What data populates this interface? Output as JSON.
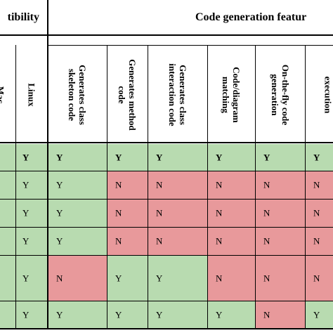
{
  "header": {
    "group_compatibility": "tibility",
    "group_code_generation": "Code generation featur"
  },
  "columns": [
    {
      "label": "Mac"
    },
    {
      "label": "Linux"
    },
    {
      "label": "Generates class skeleton code"
    },
    {
      "label": "Generates method code"
    },
    {
      "label": "Generates class interaction code"
    },
    {
      "label": "Code/diagram matching"
    },
    {
      "label": "On-the-fly code generation"
    },
    {
      "label": "execution"
    }
  ],
  "rows": [
    [
      "",
      "Y",
      "Y",
      "Y",
      "Y",
      "Y",
      "Y",
      "Y"
    ],
    [
      "",
      "Y",
      "Y",
      "N",
      "N",
      "N",
      "N",
      "N"
    ],
    [
      "",
      "Y",
      "Y",
      "N",
      "N",
      "N",
      "N",
      "N"
    ],
    [
      "",
      "Y",
      "Y",
      "N",
      "N",
      "N",
      "N",
      "N"
    ],
    [
      "",
      "Y",
      "N",
      "Y",
      "Y",
      "N",
      "N",
      "N"
    ],
    [
      "",
      "Y",
      "Y",
      "Y",
      "Y",
      "Y",
      "N",
      "Y"
    ]
  ],
  "colors": {
    "yes_fill": "#b8dbb0",
    "no_fill": "#e8999b",
    "rule": "#000000"
  }
}
